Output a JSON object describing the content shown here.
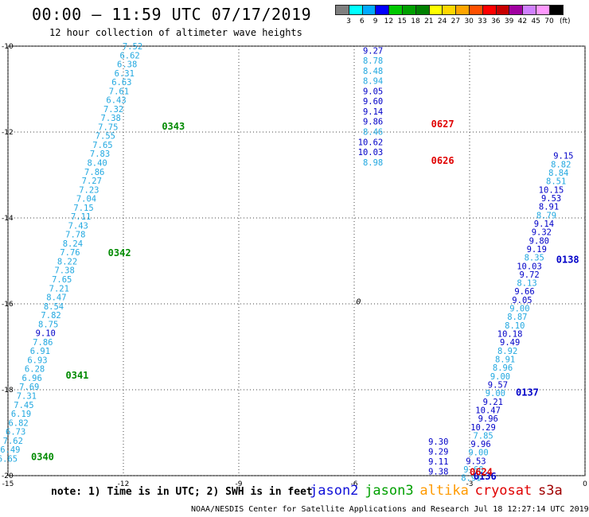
{
  "header": {
    "title": "00:00 – 11:59 UTC 07/17/2019",
    "subtitle": "12 hour collection of altimeter wave heights"
  },
  "legend": {
    "unit": "(ft)",
    "items": [
      {
        "label": "3",
        "color": "#7f7f7f"
      },
      {
        "label": "6",
        "color": "#00ffff"
      },
      {
        "label": "9",
        "color": "#00aaff"
      },
      {
        "label": "12",
        "color": "#0000ff"
      },
      {
        "label": "15",
        "color": "#00c800"
      },
      {
        "label": "18",
        "color": "#00a000"
      },
      {
        "label": "21",
        "color": "#008000"
      },
      {
        "label": "24",
        "color": "#ffff00"
      },
      {
        "label": "27",
        "color": "#ffd700"
      },
      {
        "label": "30",
        "color": "#ffa500"
      },
      {
        "label": "33",
        "color": "#ff5000"
      },
      {
        "label": "36",
        "color": "#ff0000"
      },
      {
        "label": "39",
        "color": "#c80000"
      },
      {
        "label": "42",
        "color": "#a000a0"
      },
      {
        "label": "45",
        "color": "#d080ff"
      },
      {
        "label": "70",
        "color": "#ff99ff"
      },
      {
        "label": "",
        "color": "#000000"
      }
    ]
  },
  "map": {
    "lon_range": [
      -15,
      0
    ],
    "lat_range": [
      -20,
      -10
    ],
    "x_ticks": [
      "-15",
      "-12",
      "-9",
      "-6",
      "-3",
      "0"
    ],
    "y_ticks": [
      "-10",
      "-12",
      "-14",
      "-16",
      "-18",
      "-20"
    ],
    "point_label": "0",
    "colors": {
      "light": "#22a8e0",
      "dark": "#0000c8",
      "green": "#008a00",
      "red": "#e00000"
    },
    "tracks": [
      {
        "values": [
          "7.52",
          "6.62",
          "6.38",
          "6.31",
          "6.63",
          "7.61",
          "6.43",
          "7.32",
          "7.38",
          "7.75",
          "7.55",
          "7.65",
          "7.83",
          "8.40",
          "7.86",
          "7.27",
          "7.23",
          "7.04",
          "7.15",
          "7.11",
          "7.43",
          "7.78",
          "8.24",
          "7.76",
          "8.22",
          "7.38",
          "7.65",
          "7.21",
          "8.47",
          "8.54",
          "7.82",
          "8.75",
          "9.10",
          "7.86",
          "6.91",
          "6.93",
          "6.28",
          "6.96",
          "7.69",
          "7.31",
          "7.45",
          "6.19",
          "6.82",
          "6.73",
          "7.62",
          "6.49",
          "6.65"
        ],
        "dark": [
          32
        ],
        "start": [
          -11.5,
          -10.0
        ],
        "end": [
          -14.75,
          -19.6
        ]
      },
      {
        "values": [
          "9.27",
          "8.78",
          "8.48",
          "8.94",
          "9.05",
          "9.60",
          "9.14",
          "9.86",
          "8.46",
          "10.62",
          "10.03",
          "8.98"
        ],
        "dark": [
          0,
          4,
          5,
          6,
          7,
          9,
          10
        ],
        "start": [
          -5.25,
          -10.1
        ],
        "end": [
          -5.25,
          -12.7
        ]
      },
      {
        "values": [
          "9.15",
          "8.82",
          "8.84",
          "8.51",
          "10.15",
          "9.53",
          "8.91",
          "8.79",
          "9.14",
          "9.32",
          "9.80",
          "9.19",
          "8.35",
          "10.03",
          "9.72",
          "8.13",
          "9.66",
          "9.05",
          "9.00",
          "8.87",
          "8.10",
          "10.18",
          "9.49",
          "8.92",
          "8.91",
          "8.96",
          "9.00",
          "9.57",
          "9.00",
          "9.21",
          "10.47",
          "9.96",
          "10.29",
          "7.85",
          "9.96",
          "9.00",
          "9.53",
          "9.60",
          "8.91"
        ],
        "dark": [
          0,
          4,
          5,
          6,
          8,
          9,
          10,
          11,
          13,
          14,
          16,
          17,
          21,
          22,
          27,
          29,
          30,
          31,
          32,
          34,
          36
        ],
        "start": [
          -0.3,
          -12.55
        ],
        "end": [
          -2.7,
          -20.05
        ]
      },
      {
        "values": [
          "9.30",
          "9.29",
          "9.11",
          "9.38"
        ],
        "dark": [
          0,
          1,
          2,
          3
        ],
        "start": [
          -3.55,
          -19.2
        ],
        "end": [
          -3.55,
          -19.9
        ]
      }
    ],
    "pass_labels": [
      {
        "text": "0343",
        "lon": -11.0,
        "lat": -11.85,
        "color": "green"
      },
      {
        "text": "0342",
        "lon": -12.4,
        "lat": -14.8,
        "color": "green"
      },
      {
        "text": "0341",
        "lon": -13.5,
        "lat": -17.65,
        "color": "green"
      },
      {
        "text": "0340",
        "lon": -14.4,
        "lat": -19.55,
        "color": "green"
      },
      {
        "text": "0627",
        "lon": -4.0,
        "lat": -11.8,
        "color": "red"
      },
      {
        "text": "0626",
        "lon": -4.0,
        "lat": -12.65,
        "color": "red"
      },
      {
        "text": "0138",
        "lon": -0.75,
        "lat": -14.95,
        "color": "dark"
      },
      {
        "text": "0137",
        "lon": -1.8,
        "lat": -18.05,
        "color": "dark"
      },
      {
        "text": "0136",
        "lon": -2.9,
        "lat": -20.0,
        "color": "dark"
      },
      {
        "text": "0624",
        "lon": -3.0,
        "lat": -19.9,
        "color": "red"
      }
    ]
  },
  "footer": {
    "note": "note: 1) Time is in UTC; 2) SWH is in feet",
    "satellites": [
      {
        "name": "jason2",
        "color": "#1010d8"
      },
      {
        "name": "jason3",
        "color": "#00a000"
      },
      {
        "name": "altika",
        "color": "#ff9a00"
      },
      {
        "name": "cryosat",
        "color": "#e00000"
      },
      {
        "name": "s3a",
        "color": "#a00000"
      }
    ],
    "credit": "NOAA/NESDIS Center for Satellite Applications and Research    Jul 18 12:27:14 UTC 2019"
  }
}
